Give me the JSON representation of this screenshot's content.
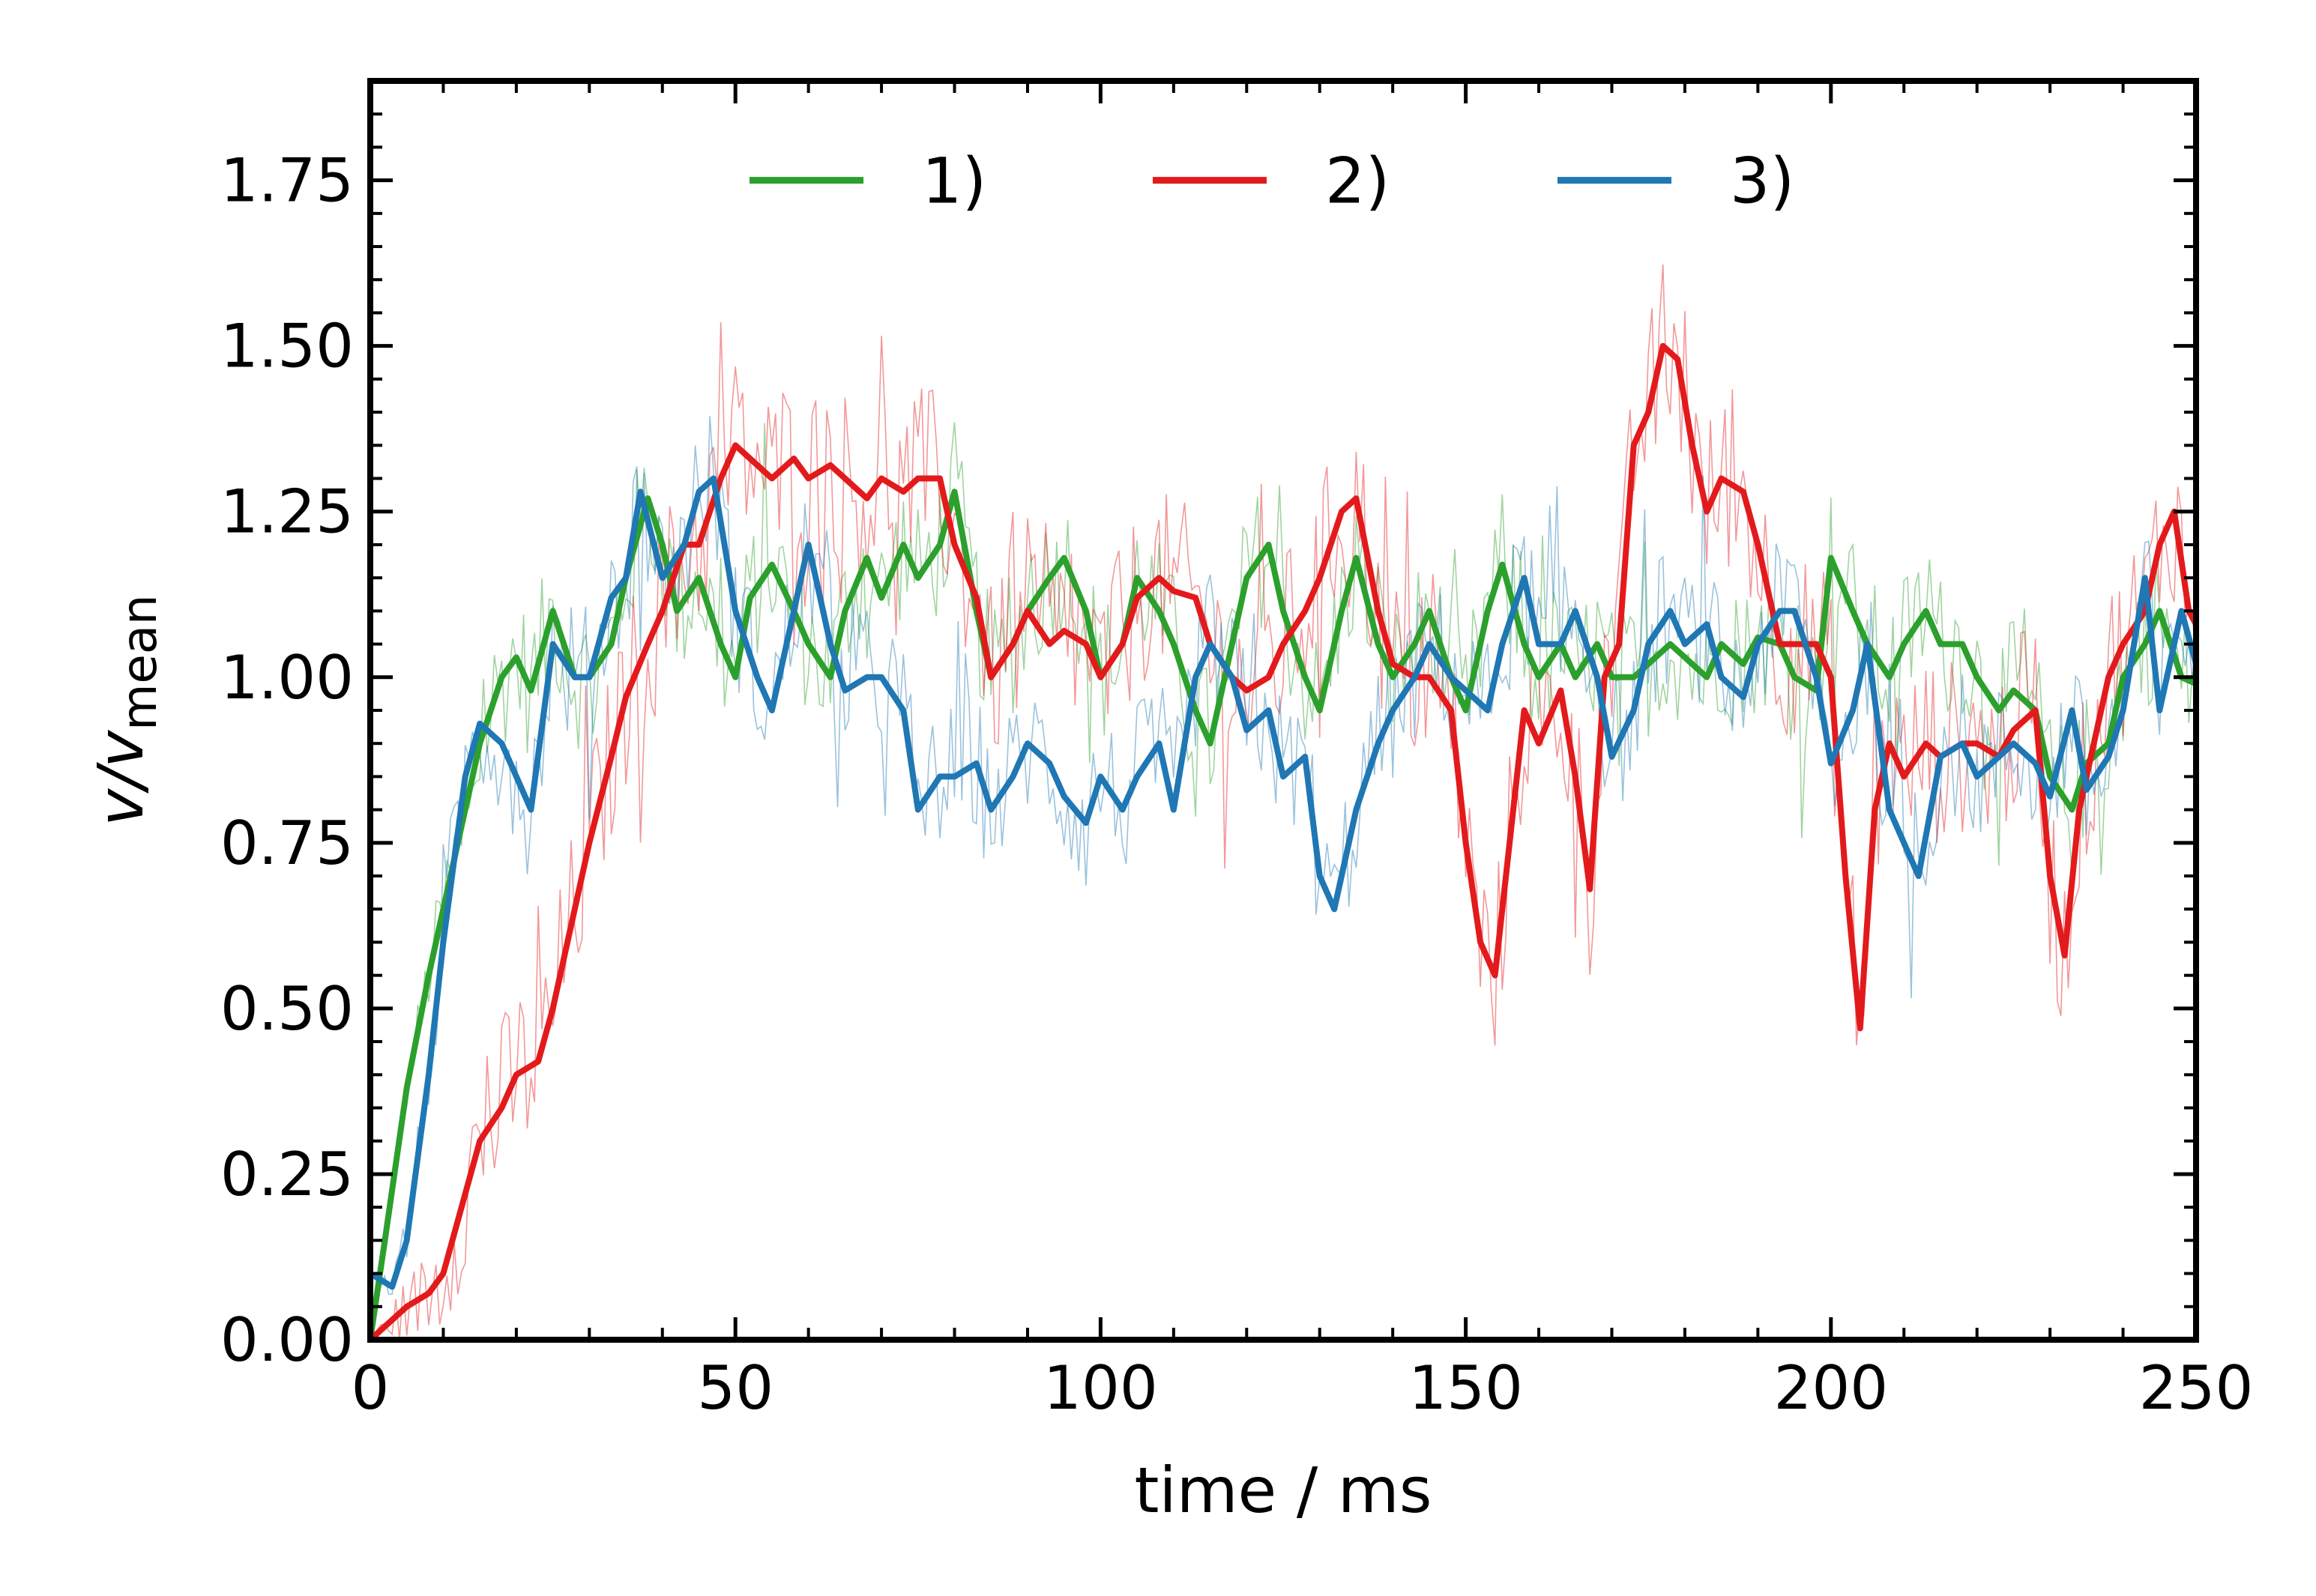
{
  "chart_data": {
    "type": "line",
    "title": "",
    "xlabel": "time / ms",
    "ylabel_main": "v/v",
    "ylabel_sub": "mean",
    "xlim": [
      0,
      250
    ],
    "ylim": [
      0,
      1.9
    ],
    "xticks": [
      0,
      50,
      100,
      150,
      200,
      250
    ],
    "xtick_labels": [
      "0",
      "50",
      "100",
      "150",
      "200",
      "250"
    ],
    "yticks": [
      0,
      0.25,
      0.5,
      0.75,
      1.0,
      1.25,
      1.5,
      1.75
    ],
    "ytick_labels": [
      "0.00",
      "0.25",
      "0.50",
      "0.75",
      "1.00",
      "1.25",
      "1.50",
      "1.75"
    ],
    "grid": false,
    "legend_position": "top-center",
    "series": [
      {
        "name": "1)",
        "color": "#2ca02c",
        "x": [
          0,
          2,
          5,
          8,
          12,
          15,
          18,
          20,
          22,
          25,
          28,
          30,
          33,
          35,
          38,
          40,
          42,
          45,
          48,
          50,
          52,
          55,
          58,
          60,
          63,
          65,
          68,
          70,
          73,
          75,
          78,
          80,
          83,
          85,
          88,
          90,
          93,
          95,
          98,
          100,
          103,
          105,
          108,
          110,
          113,
          115,
          118,
          120,
          123,
          125,
          128,
          130,
          133,
          135,
          138,
          140,
          143,
          145,
          148,
          150,
          153,
          155,
          158,
          160,
          163,
          165,
          168,
          170,
          173,
          175,
          178,
          180,
          183,
          185,
          188,
          190,
          193,
          195,
          198,
          200,
          203,
          205,
          208,
          210,
          213,
          215,
          218,
          220,
          223,
          225,
          228,
          230,
          233,
          235,
          238,
          240,
          243,
          245,
          248,
          250
        ],
        "y": [
          0.0,
          0.15,
          0.38,
          0.55,
          0.75,
          0.9,
          1.0,
          1.03,
          0.98,
          1.1,
          1.0,
          1.0,
          1.05,
          1.15,
          1.27,
          1.2,
          1.1,
          1.15,
          1.05,
          1.0,
          1.12,
          1.17,
          1.1,
          1.05,
          1.0,
          1.1,
          1.18,
          1.12,
          1.2,
          1.15,
          1.2,
          1.28,
          1.1,
          1.0,
          1.05,
          1.1,
          1.15,
          1.18,
          1.1,
          1.0,
          1.05,
          1.15,
          1.1,
          1.05,
          0.95,
          0.9,
          1.05,
          1.15,
          1.2,
          1.1,
          1.0,
          0.95,
          1.1,
          1.18,
          1.05,
          1.0,
          1.05,
          1.1,
          1.0,
          0.95,
          1.1,
          1.17,
          1.05,
          1.0,
          1.05,
          1.0,
          1.05,
          1.0,
          1.0,
          1.02,
          1.05,
          1.03,
          1.0,
          1.05,
          1.02,
          1.06,
          1.05,
          1.0,
          0.98,
          1.18,
          1.1,
          1.05,
          1.0,
          1.05,
          1.1,
          1.05,
          1.05,
          1.0,
          0.95,
          0.98,
          0.95,
          0.85,
          0.8,
          0.87,
          0.9,
          1.0,
          1.05,
          1.1,
          1.0,
          0.99
        ]
      },
      {
        "name": "2)",
        "color": "#e31a1c",
        "x": [
          0,
          3,
          5,
          8,
          10,
          12,
          15,
          18,
          20,
          23,
          25,
          28,
          30,
          33,
          35,
          38,
          40,
          43,
          45,
          48,
          50,
          52,
          55,
          58,
          60,
          63,
          65,
          68,
          70,
          73,
          75,
          78,
          80,
          83,
          85,
          88,
          90,
          93,
          95,
          98,
          100,
          103,
          105,
          108,
          110,
          113,
          115,
          118,
          120,
          123,
          125,
          128,
          130,
          133,
          135,
          138,
          140,
          143,
          145,
          148,
          150,
          152,
          154,
          156,
          158,
          160,
          163,
          165,
          167,
          169,
          171,
          173,
          175,
          177,
          179,
          181,
          183,
          185,
          188,
          190,
          193,
          195,
          198,
          200,
          202,
          204,
          206,
          208,
          210,
          213,
          215,
          218,
          220,
          223,
          225,
          228,
          230,
          232,
          234,
          236,
          238,
          240,
          243,
          245,
          247,
          249,
          250
        ],
        "y": [
          0.0,
          0.03,
          0.05,
          0.07,
          0.1,
          0.18,
          0.3,
          0.35,
          0.4,
          0.42,
          0.5,
          0.65,
          0.75,
          0.88,
          0.97,
          1.05,
          1.1,
          1.2,
          1.2,
          1.3,
          1.35,
          1.33,
          1.3,
          1.33,
          1.3,
          1.32,
          1.3,
          1.27,
          1.3,
          1.28,
          1.3,
          1.3,
          1.2,
          1.12,
          1.0,
          1.05,
          1.1,
          1.05,
          1.07,
          1.05,
          1.0,
          1.05,
          1.12,
          1.15,
          1.13,
          1.12,
          1.05,
          1.0,
          0.98,
          1.0,
          1.05,
          1.1,
          1.15,
          1.25,
          1.27,
          1.1,
          1.02,
          1.0,
          1.0,
          0.95,
          0.75,
          0.6,
          0.55,
          0.75,
          0.95,
          0.9,
          0.98,
          0.85,
          0.68,
          1.0,
          1.05,
          1.35,
          1.4,
          1.5,
          1.48,
          1.35,
          1.25,
          1.3,
          1.28,
          1.2,
          1.05,
          1.05,
          1.05,
          1.0,
          0.7,
          0.47,
          0.8,
          0.9,
          0.85,
          0.9,
          0.88,
          0.9,
          0.9,
          0.88,
          0.92,
          0.95,
          0.7,
          0.58,
          0.8,
          0.9,
          1.0,
          1.05,
          1.1,
          1.2,
          1.25,
          1.1,
          1.08
        ]
      },
      {
        "name": "3)",
        "color": "#1f77b4",
        "x": [
          0,
          3,
          5,
          8,
          10,
          13,
          15,
          18,
          20,
          22,
          25,
          28,
          30,
          33,
          35,
          37,
          40,
          43,
          45,
          47,
          50,
          53,
          55,
          58,
          60,
          63,
          65,
          68,
          70,
          73,
          75,
          78,
          80,
          83,
          85,
          88,
          90,
          93,
          95,
          98,
          100,
          103,
          105,
          108,
          110,
          113,
          115,
          118,
          120,
          123,
          125,
          128,
          130,
          132,
          135,
          138,
          140,
          143,
          145,
          148,
          150,
          153,
          155,
          158,
          160,
          163,
          165,
          168,
          170,
          173,
          175,
          178,
          180,
          183,
          185,
          188,
          190,
          193,
          195,
          198,
          200,
          203,
          205,
          208,
          210,
          212,
          215,
          218,
          220,
          223,
          225,
          228,
          230,
          233,
          235,
          238,
          240,
          243,
          245,
          248,
          250
        ],
        "y": [
          0.1,
          0.08,
          0.15,
          0.4,
          0.6,
          0.85,
          0.93,
          0.9,
          0.85,
          0.8,
          1.05,
          1.0,
          1.0,
          1.12,
          1.15,
          1.28,
          1.15,
          1.2,
          1.28,
          1.3,
          1.1,
          1.0,
          0.95,
          1.1,
          1.2,
          1.05,
          0.98,
          1.0,
          1.0,
          0.95,
          0.8,
          0.85,
          0.85,
          0.87,
          0.8,
          0.85,
          0.9,
          0.87,
          0.82,
          0.78,
          0.85,
          0.8,
          0.85,
          0.9,
          0.8,
          1.0,
          1.05,
          1.0,
          0.92,
          0.95,
          0.85,
          0.88,
          0.7,
          0.65,
          0.8,
          0.9,
          0.95,
          1.0,
          1.05,
          1.0,
          0.98,
          0.95,
          1.05,
          1.15,
          1.05,
          1.05,
          1.1,
          1.0,
          0.88,
          0.95,
          1.05,
          1.1,
          1.05,
          1.08,
          1.0,
          0.97,
          1.05,
          1.1,
          1.1,
          1.0,
          0.87,
          0.95,
          1.05,
          0.8,
          0.75,
          0.7,
          0.88,
          0.9,
          0.85,
          0.88,
          0.9,
          0.87,
          0.82,
          0.95,
          0.83,
          0.88,
          0.95,
          1.15,
          0.95,
          1.1,
          1.02
        ]
      }
    ]
  }
}
